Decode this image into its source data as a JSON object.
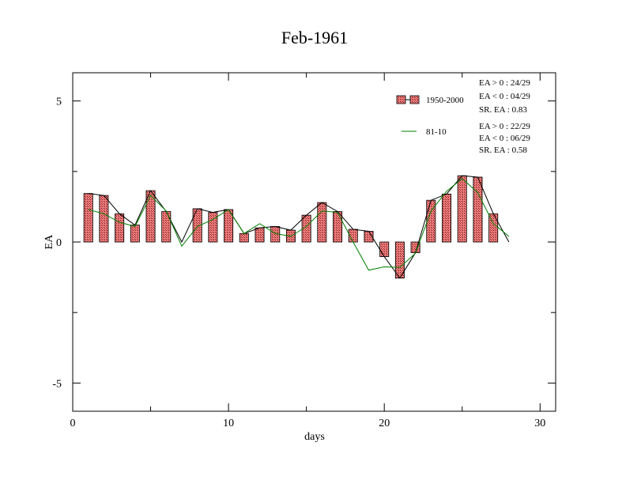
{
  "chart_data": {
    "type": "bar",
    "title": "Feb-1961",
    "xlabel": "days",
    "ylabel": "EA",
    "xlim": [
      0,
      31
    ],
    "ylim": [
      -6,
      6
    ],
    "x_ticks": [
      0,
      10,
      20,
      30
    ],
    "y_ticks": [
      5,
      0,
      -5
    ],
    "x_tick_labels": [
      "0",
      "10",
      "20",
      "30"
    ],
    "y_tick_labels": [
      "5",
      "0",
      "-5"
    ],
    "grid": false,
    "legend_position": "top-right",
    "x": [
      1,
      2,
      3,
      4,
      5,
      6,
      7,
      8,
      9,
      10,
      11,
      12,
      13,
      14,
      15,
      16,
      17,
      18,
      19,
      20,
      21,
      22,
      23,
      24,
      25,
      26,
      27,
      28
    ],
    "series": [
      {
        "name": "1950-2000",
        "style": "bar-with-line",
        "color": "#f08080",
        "line_color": "#000000",
        "values": [
          1.72,
          1.65,
          1.0,
          0.6,
          1.82,
          1.08,
          0.0,
          1.18,
          1.05,
          1.15,
          0.3,
          0.5,
          0.55,
          0.42,
          0.95,
          1.4,
          1.08,
          0.45,
          0.38,
          -0.52,
          -1.28,
          -0.38,
          1.48,
          1.7,
          2.35,
          2.3,
          1.0,
          0.0
        ]
      },
      {
        "name": "81-10",
        "style": "line",
        "color": "#008000",
        "values": [
          1.15,
          1.0,
          0.7,
          0.55,
          1.65,
          1.1,
          -0.15,
          0.55,
          0.8,
          1.15,
          0.3,
          0.65,
          0.3,
          0.2,
          0.55,
          1.1,
          1.05,
          0.0,
          -1.0,
          -0.88,
          -0.9,
          -0.4,
          1.1,
          1.8,
          2.25,
          1.75,
          0.65,
          0.2
        ]
      }
    ],
    "stats": [
      [
        "EA > 0 : 24/29",
        "EA < 0 : 04/29",
        "SR. EA :  0.83"
      ],
      [
        "EA > 0 : 22/29",
        "EA < 0 : 06/29",
        "SR. EA :  0.58"
      ]
    ]
  }
}
